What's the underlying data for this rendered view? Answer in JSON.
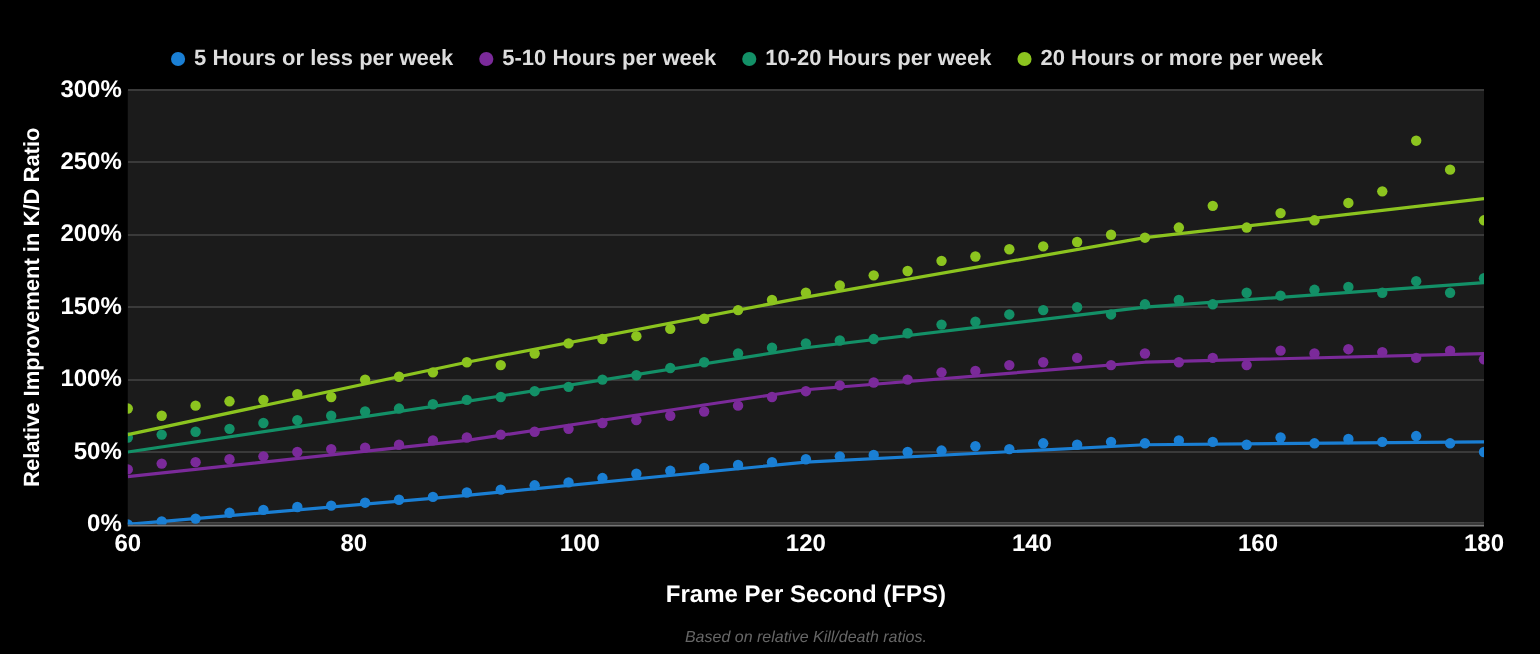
{
  "chart_data": {
    "type": "scatter",
    "xlabel": "Frame Per Second (FPS)",
    "ylabel": "Relative Improvement in K/D Ratio",
    "annotations": [
      "Based on relative Kill/death ratios."
    ],
    "xlim": [
      60,
      180
    ],
    "xticks": [
      60,
      80,
      100,
      120,
      140,
      160,
      180
    ],
    "ylim": [
      0,
      300
    ],
    "yticks": [
      {
        "value": 0,
        "label": "0%"
      },
      {
        "value": 50,
        "label": "50%"
      },
      {
        "value": 100,
        "label": "100%"
      },
      {
        "value": 150,
        "label": "150%"
      },
      {
        "value": 200,
        "label": "200%"
      },
      {
        "value": 250,
        "label": "250%"
      },
      {
        "value": 300,
        "label": "300%"
      }
    ],
    "grid": "y",
    "legend": "top",
    "x": [
      60,
      63,
      66,
      69,
      72,
      75,
      78,
      81,
      84,
      87,
      90,
      93,
      96,
      99,
      102,
      105,
      108,
      111,
      114,
      117,
      120,
      123,
      126,
      129,
      132,
      135,
      138,
      141,
      144,
      147,
      150,
      153,
      156,
      159,
      162,
      165,
      168,
      171,
      174,
      177,
      180
    ],
    "series": [
      {
        "name": "5 Hours or less per week",
        "type": "scatter",
        "marker": "circle",
        "color": "#1a7fd4",
        "values": [
          0,
          2,
          4,
          8,
          10,
          12,
          13,
          15,
          17,
          19,
          22,
          24,
          27,
          29,
          32,
          35,
          37,
          39,
          41,
          43,
          45,
          47,
          48,
          50,
          51,
          54,
          52,
          56,
          55,
          57,
          56,
          58,
          57,
          55,
          60,
          56,
          59,
          57,
          61,
          56,
          50
        ]
      },
      {
        "name": "5-10 Hours per week",
        "type": "scatter",
        "marker": "circle",
        "color": "#7b2a9a",
        "values": [
          38,
          42,
          43,
          45,
          47,
          50,
          52,
          53,
          55,
          58,
          60,
          62,
          64,
          66,
          70,
          72,
          75,
          78,
          82,
          88,
          92,
          96,
          98,
          100,
          105,
          106,
          110,
          112,
          115,
          110,
          118,
          112,
          115,
          110,
          120,
          118,
          121,
          119,
          115,
          120,
          114
        ]
      },
      {
        "name": "10-20 Hours per week",
        "type": "scatter",
        "marker": "circle",
        "color": "#139067",
        "values": [
          60,
          62,
          64,
          66,
          70,
          72,
          75,
          78,
          80,
          83,
          86,
          88,
          92,
          95,
          100,
          103,
          108,
          112,
          118,
          122,
          125,
          127,
          128,
          132,
          138,
          140,
          145,
          148,
          150,
          145,
          152,
          155,
          152,
          160,
          158,
          162,
          164,
          160,
          168,
          160,
          170
        ]
      },
      {
        "name": "20 Hours or more per week",
        "type": "scatter",
        "marker": "circle",
        "color": "#8cc41f",
        "values": [
          80,
          75,
          82,
          85,
          86,
          90,
          88,
          100,
          102,
          105,
          112,
          110,
          118,
          125,
          128,
          130,
          135,
          142,
          148,
          155,
          160,
          165,
          172,
          175,
          182,
          185,
          190,
          192,
          195,
          200,
          198,
          205,
          220,
          205,
          215,
          210,
          222,
          230,
          265,
          245,
          210
        ]
      },
      {
        "type": "line",
        "marker": "none",
        "color": "#1a7fd4",
        "x": [
          60,
          90,
          120,
          150,
          180
        ],
        "values": [
          0,
          20,
          43,
          55,
          57
        ]
      },
      {
        "type": "line",
        "marker": "none",
        "color": "#7b2a9a",
        "x": [
          60,
          90,
          120,
          150,
          180
        ],
        "values": [
          33,
          58,
          93,
          112,
          118
        ]
      },
      {
        "type": "line",
        "marker": "none",
        "color": "#139067",
        "x": [
          60,
          90,
          120,
          150,
          180
        ],
        "values": [
          50,
          85,
          122,
          150,
          167
        ]
      },
      {
        "type": "line",
        "marker": "none",
        "color": "#8cc41f",
        "x": [
          60,
          90,
          120,
          150,
          180
        ],
        "values": [
          62,
          112,
          157,
          198,
          225
        ]
      }
    ]
  }
}
